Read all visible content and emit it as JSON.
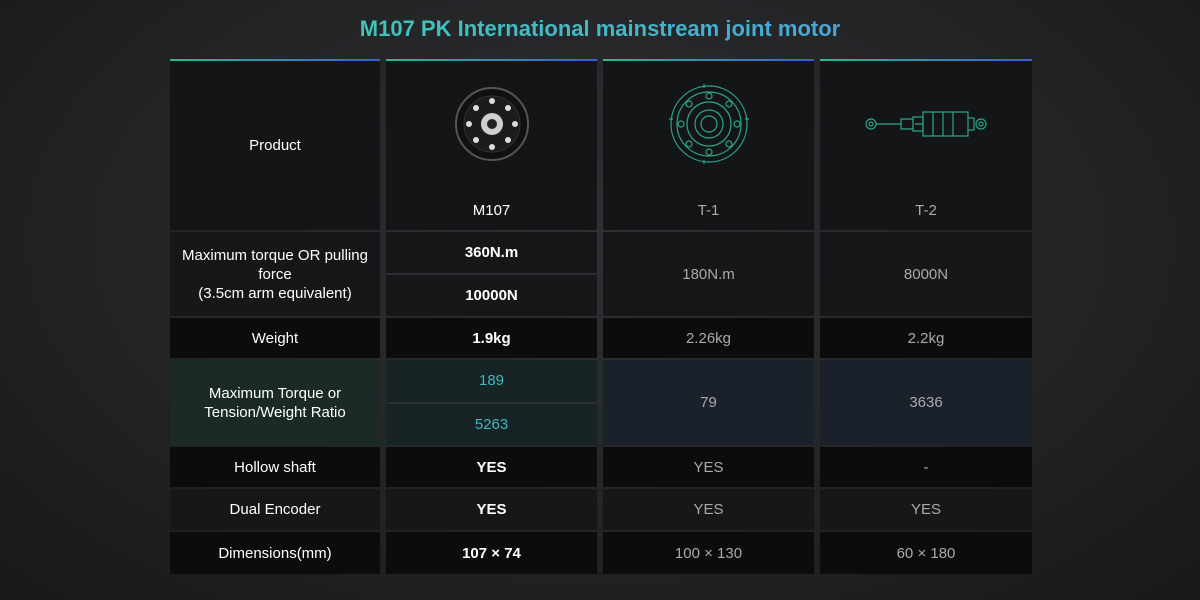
{
  "title": "M107 PK International mainstream joint motor",
  "table": {
    "header": [
      "Product",
      "M107",
      "T-1",
      "T-2"
    ],
    "rows": [
      {
        "label_lines": [
          "Maximum torque OR pulling force",
          "(3.5cm arm equivalent)"
        ],
        "values": [
          [
            "360N.m",
            "10000N"
          ],
          "180N.m",
          "8000N"
        ]
      },
      {
        "label_lines": [
          "Weight"
        ],
        "values": [
          "1.9kg",
          "2.26kg",
          "2.2kg"
        ]
      },
      {
        "label_lines": [
          "Maximum Torque or",
          "Tension/Weight Ratio"
        ],
        "values": [
          [
            "189",
            "5263"
          ],
          "79",
          "3636"
        ]
      },
      {
        "label_lines": [
          "Hollow shaft"
        ],
        "values": [
          "YES",
          "YES",
          "-"
        ]
      },
      {
        "label_lines": [
          "Dual Encoder"
        ],
        "values": [
          "YES",
          "YES",
          "YES"
        ]
      },
      {
        "label_lines": [
          "Dimensions(mm)"
        ],
        "values": [
          "107 × 74",
          "100 × 130",
          "60 × 180"
        ]
      }
    ]
  }
}
